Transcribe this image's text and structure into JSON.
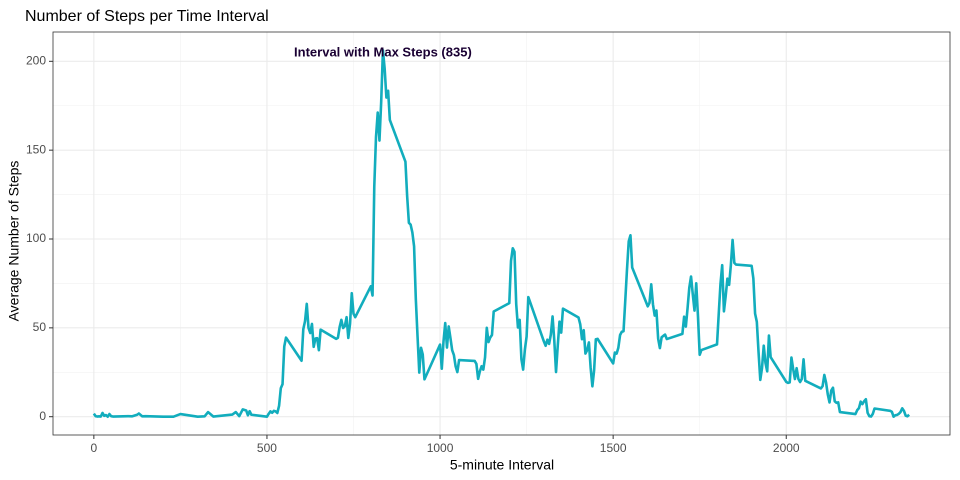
{
  "chart_data": {
    "type": "line",
    "title": "Number of Steps per Time Interval",
    "x_label": "5-minute Interval",
    "y_label": "Average Number of Steps",
    "annotation": "Interval with Max Steps (835)",
    "xlim": [
      -118,
      2473
    ],
    "ylim": [
      -10.3,
      216.5
    ],
    "xticks": [
      0,
      500,
      1000,
      1500,
      2000
    ],
    "yticks": [
      0,
      50,
      100,
      150,
      200
    ],
    "grid": true,
    "x": [
      0,
      5,
      10,
      15,
      20,
      25,
      30,
      35,
      40,
      45,
      50,
      55,
      100,
      110,
      125,
      130,
      140,
      150,
      200,
      215,
      230,
      250,
      300,
      320,
      330,
      345,
      400,
      410,
      420,
      430,
      440,
      445,
      450,
      455,
      500,
      505,
      510,
      515,
      520,
      525,
      530,
      535,
      540,
      545,
      550,
      555,
      600,
      605,
      610,
      615,
      620,
      625,
      630,
      635,
      640,
      645,
      650,
      655,
      700,
      705,
      710,
      715,
      720,
      725,
      730,
      735,
      740,
      745,
      750,
      755,
      800,
      805,
      810,
      815,
      820,
      825,
      830,
      835,
      840,
      845,
      850,
      855,
      900,
      905,
      910,
      915,
      920,
      925,
      930,
      935,
      940,
      945,
      950,
      955,
      1000,
      1005,
      1010,
      1015,
      1020,
      1025,
      1030,
      1035,
      1040,
      1045,
      1050,
      1055,
      1100,
      1105,
      1110,
      1115,
      1120,
      1125,
      1130,
      1135,
      1140,
      1145,
      1150,
      1155,
      1200,
      1205,
      1210,
      1215,
      1220,
      1225,
      1230,
      1235,
      1240,
      1245,
      1250,
      1255,
      1300,
      1305,
      1310,
      1315,
      1320,
      1325,
      1330,
      1335,
      1340,
      1345,
      1350,
      1355,
      1400,
      1405,
      1410,
      1415,
      1420,
      1425,
      1430,
      1435,
      1440,
      1445,
      1450,
      1455,
      1500,
      1505,
      1510,
      1515,
      1520,
      1525,
      1530,
      1535,
      1540,
      1545,
      1550,
      1555,
      1600,
      1605,
      1610,
      1615,
      1620,
      1625,
      1630,
      1635,
      1640,
      1645,
      1650,
      1655,
      1700,
      1705,
      1710,
      1715,
      1720,
      1725,
      1730,
      1735,
      1740,
      1745,
      1750,
      1755,
      1800,
      1805,
      1810,
      1815,
      1820,
      1825,
      1830,
      1835,
      1840,
      1845,
      1850,
      1855,
      1900,
      1905,
      1910,
      1915,
      1920,
      1925,
      1930,
      1935,
      1940,
      1945,
      1950,
      1955,
      2000,
      2005,
      2010,
      2015,
      2020,
      2025,
      2030,
      2035,
      2040,
      2045,
      2050,
      2055,
      2100,
      2105,
      2110,
      2115,
      2120,
      2125,
      2130,
      2135,
      2140,
      2145,
      2150,
      2155,
      2200,
      2205,
      2210,
      2215,
      2220,
      2225,
      2230,
      2235,
      2240,
      2245,
      2250,
      2255,
      2300,
      2305,
      2310,
      2315,
      2320,
      2325,
      2330,
      2335,
      2340,
      2345,
      2350,
      2355
    ],
    "series": [
      {
        "color": "#12adbd",
        "values": [
          1.7,
          0.3,
          0.1,
          0.2,
          0.1,
          2.1,
          0.5,
          0.9,
          0,
          1.5,
          0.3,
          0.1,
          0.3,
          0.2,
          1.1,
          1.8,
          0.2,
          0.3,
          0,
          0,
          0,
          1.5,
          0,
          0.2,
          2.6,
          0.1,
          1.2,
          2.6,
          0.3,
          4.1,
          3.5,
          0.8,
          3.1,
          1.1,
          0,
          1.6,
          3,
          2.2,
          3.3,
          3,
          2.1,
          6.1,
          16,
          18.3,
          39.5,
          44.5,
          31.5,
          49.3,
          53.8,
          63.5,
          50,
          47.1,
          52.2,
          39.3,
          44,
          44.2,
          37.4,
          49,
          43.8,
          44.4,
          50.5,
          54.5,
          49.9,
          51,
          56,
          44.3,
          52.3,
          69.5,
          58,
          56,
          73.4,
          68.2,
          129.4,
          157.5,
          171.2,
          155.4,
          177.3,
          206.2,
          195.9,
          179.6,
          183.4,
          167,
          143.5,
          124,
          109.1,
          108.1,
          103.7,
          95.9,
          66.2,
          45.2,
          24.8,
          38.8,
          35,
          21,
          40.6,
          26.98,
          42.4,
          52.7,
          38.9,
          50.8,
          44.3,
          37.4,
          34.7,
          28.3,
          25.1,
          31.9,
          31.4,
          29.7,
          21.3,
          25.5,
          28.4,
          26.5,
          33.4,
          50,
          42,
          44.6,
          46,
          59.2,
          63.9,
          87.7,
          94.8,
          92.8,
          63.4,
          50.2,
          54.5,
          32.4,
          26.5,
          37.7,
          45.1,
          67.3,
          42.3,
          39.9,
          43.3,
          40.98,
          46.2,
          56.4,
          42.8,
          25.1,
          39.97,
          53.5,
          47.3,
          60.8,
          55.8,
          51.96,
          43.6,
          48.7,
          35.5,
          37.5,
          41.8,
          27.5,
          17.1,
          26.1,
          43.6,
          43.8,
          30,
          36.1,
          35.5,
          38.8,
          45.96,
          47.8,
          48.1,
          65.3,
          82.9,
          98.7,
          102.1,
          83.96,
          62.1,
          64.1,
          74.5,
          63.2,
          56.9,
          59.8,
          43.9,
          38.6,
          44.7,
          45.5,
          46.2,
          43.7,
          46.6,
          56.3,
          50.7,
          61.2,
          72.7,
          78.9,
          68.9,
          59.7,
          75.1,
          56.5,
          34.8,
          37.5,
          40.7,
          58,
          74.7,
          85.3,
          59.3,
          67.8,
          77.7,
          74.2,
          85.3,
          99.5,
          86.6,
          85.6,
          84.9,
          77.8,
          58,
          53.4,
          36.3,
          20.7,
          27.4,
          40,
          30.2,
          25.5,
          45.7,
          33.5,
          19.6,
          19,
          19.3,
          33.3,
          26.8,
          21.2,
          27.3,
          21.3,
          19.5,
          21.3,
          32.3,
          20.2,
          15.9,
          17.2,
          23.5,
          19.2,
          12.5,
          8,
          14.7,
          16.3,
          8.7,
          7.8,
          8.1,
          2.6,
          1.5,
          3.7,
          4.8,
          8.5,
          7.1,
          8.7,
          9.8,
          2.2,
          0.3,
          0.1,
          1.6,
          4.6,
          3.3,
          2.8,
          0,
          0.8,
          1,
          1.6,
          2.6,
          4.7,
          3.3,
          0.6,
          0.2,
          1.1
        ]
      }
    ]
  }
}
